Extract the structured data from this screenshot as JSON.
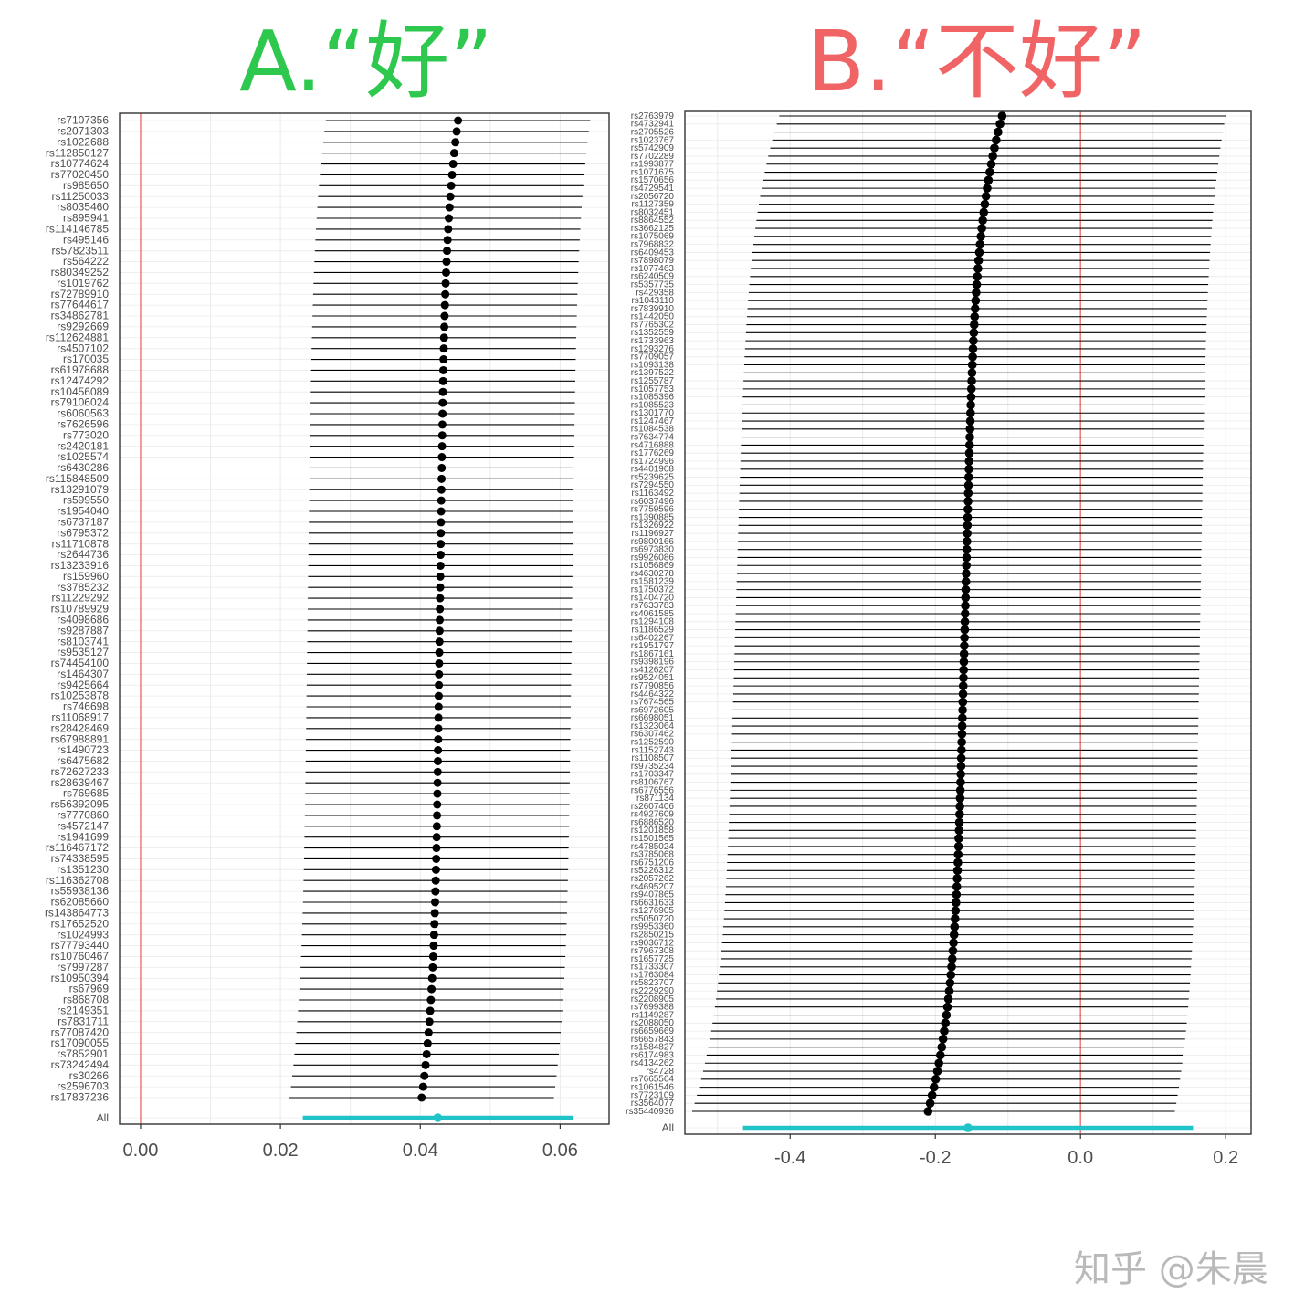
{
  "colors": {
    "title_a": "#2dc84d",
    "title_b": "#f06465",
    "refline": "#f08080",
    "point": "#000000",
    "whisker": "#000000",
    "summary": "#1fc3c8",
    "grid": "#ebebeb",
    "frame": "#333333",
    "watermark": "#b9b9b9"
  },
  "panels": [
    {
      "id": "a",
      "title": "A.“好”"
    },
    {
      "id": "b",
      "title": "B.“不好”"
    }
  ],
  "watermark": "知乎 @朱晨",
  "chart_data": [
    {
      "type": "scatter",
      "subtype": "forest-plot (point estimate with horizontal confidence intervals)",
      "title": "A.“好”",
      "xlim": [
        -0.003,
        0.067
      ],
      "xticks": [
        0.0,
        0.02,
        0.04,
        0.06
      ],
      "xtick_labels": [
        "0.00",
        "0.02",
        "0.04",
        "0.06"
      ],
      "reference_line_x": 0,
      "grid": true,
      "summary_label": "All",
      "summary": {
        "est": 0.0425,
        "lo": 0.0232,
        "hi": 0.0618
      },
      "est_range": [
        0.0454,
        0.0402
      ],
      "lo_range": [
        0.0265,
        0.0213
      ],
      "hi_range": [
        0.0643,
        0.0591
      ],
      "snps": [
        "rs7107356",
        "rs2071303",
        "rs1022688",
        "rs112850127",
        "rs10774624",
        "rs77020450",
        "rs985650",
        "rs11250033",
        "rs8035460",
        "rs895941",
        "rs114146785",
        "rs495146",
        "rs57823511",
        "rs564222",
        "rs80349252",
        "rs1019762",
        "rs72789910",
        "rs77644617",
        "rs34862781",
        "rs9292669",
        "rs112624881",
        "rs4507102",
        "rs170035",
        "rs61978688",
        "rs12474292",
        "rs10456089",
        "rs79106024",
        "rs6060563",
        "rs7626596",
        "rs773020",
        "rs2420181",
        "rs1025574",
        "rs6430286",
        "rs115848509",
        "rs13291079",
        "rs599550",
        "rs1954040",
        "rs6737187",
        "rs6795372",
        "rs11710878",
        "rs2644736",
        "rs13233916",
        "rs159960",
        "rs3785232",
        "rs11229292",
        "rs10789929",
        "rs4098686",
        "rs9287887",
        "rs8103741",
        "rs9535127",
        "rs74454100",
        "rs1464307",
        "rs9425664",
        "rs10253878",
        "rs746698",
        "rs11068917",
        "rs28428469",
        "rs67988891",
        "rs1490723",
        "rs6475682",
        "rs72627233",
        "rs28639467",
        "rs769685",
        "rs56392095",
        "rs7770860",
        "rs4572147",
        "rs1941699",
        "rs116467172",
        "rs74338595",
        "rs1351230",
        "rs116362708",
        "rs55938136",
        "rs62085660",
        "rs143864773",
        "rs17652520",
        "rs1024993",
        "rs77793440",
        "rs10760467",
        "rs7997287",
        "rs10950394",
        "rs67969",
        "rs868708",
        "rs2149351",
        "rs7831711",
        "rs77087420",
        "rs17090055",
        "rs7852901",
        "rs73242494",
        "rs30266",
        "rs2596703",
        "rs17837236"
      ]
    },
    {
      "type": "scatter",
      "subtype": "forest-plot (point estimate with horizontal confidence intervals)",
      "title": "B.“不好”",
      "xlim": [
        -0.545,
        0.235
      ],
      "xticks": [
        -0.4,
        -0.2,
        0.0,
        0.2
      ],
      "xtick_labels": [
        "-0.4",
        "-0.2",
        "0.0",
        "0.2"
      ],
      "reference_line_x": 0,
      "grid": true,
      "summary_label": "All",
      "summary": {
        "est": -0.155,
        "lo": -0.465,
        "hi": 0.155
      },
      "est_range": [
        -0.108,
        -0.21
      ],
      "lo_range": [
        -0.415,
        -0.535
      ],
      "hi_range": [
        0.2,
        0.13
      ],
      "snps": [
        "rs2763979",
        "rs4732941",
        "rs2705526",
        "rs1023767",
        "rs5742909",
        "rs7702289",
        "rs1993877",
        "rs1071675",
        "rs1570656",
        "rs4729541",
        "rs2056720",
        "rs1127359",
        "rs8032451",
        "rs8864552",
        "rs3662125",
        "rs1075069",
        "rs7968832",
        "rs6409453",
        "rs7898079",
        "rs1077463",
        "rs6240509",
        "rs5357735",
        "rs429358",
        "rs1043110",
        "rs7839910",
        "rs1442050",
        "rs7765302",
        "rs1352559",
        "rs1733963",
        "rs1293276",
        "rs7709057",
        "rs1093138",
        "rs1397522",
        "rs1255787",
        "rs1057753",
        "rs1085396",
        "rs1085523",
        "rs1301770",
        "rs1247467",
        "rs1084538",
        "rs7634774",
        "rs4716888",
        "rs1776269",
        "rs1724996",
        "rs4401908",
        "rs5239625",
        "rs7294550",
        "rs1163492",
        "rs6037496",
        "rs7759596",
        "rs1390885",
        "rs1326922",
        "rs1196927",
        "rs9800166",
        "rs6973830",
        "rs9926086",
        "rs1056869",
        "rs4630278",
        "rs1581239",
        "rs1750372",
        "rs1404720",
        "rs7633783",
        "rs4061585",
        "rs1294108",
        "rs1186529",
        "rs6402267",
        "rs1951797",
        "rs1867161",
        "rs9398196",
        "rs4126207",
        "rs9524051",
        "rs7790856",
        "rs4464322",
        "rs7674565",
        "rs6972605",
        "rs6698051",
        "rs1323064",
        "rs6307462",
        "rs1252590",
        "rs1152743",
        "rs1108507",
        "rs9735234",
        "rs1703347",
        "rs8106767",
        "rs6776556",
        "rs871134",
        "rs2607406",
        "rs4927609",
        "rs6886520",
        "rs1201858",
        "rs1501565",
        "rs4785024",
        "rs3785068",
        "rs6751206",
        "rs5226312",
        "rs2057262",
        "rs4695207",
        "rs9407865",
        "rs6631633",
        "rs1276905",
        "rs5050720",
        "rs9953360",
        "rs2850215",
        "rs9036712",
        "rs7967308",
        "rs1657725",
        "rs1733307",
        "rs1763084",
        "rs5823707",
        "rs2229290",
        "rs2208905",
        "rs7699388",
        "rs1149287",
        "rs2088050",
        "rs6659669",
        "rs6657843",
        "rs1584827",
        "rs6174983",
        "rs4134262",
        "rs4728",
        "rs7665564",
        "rs1061546",
        "rs7723109",
        "rs3564077",
        "rs35440936"
      ]
    }
  ]
}
